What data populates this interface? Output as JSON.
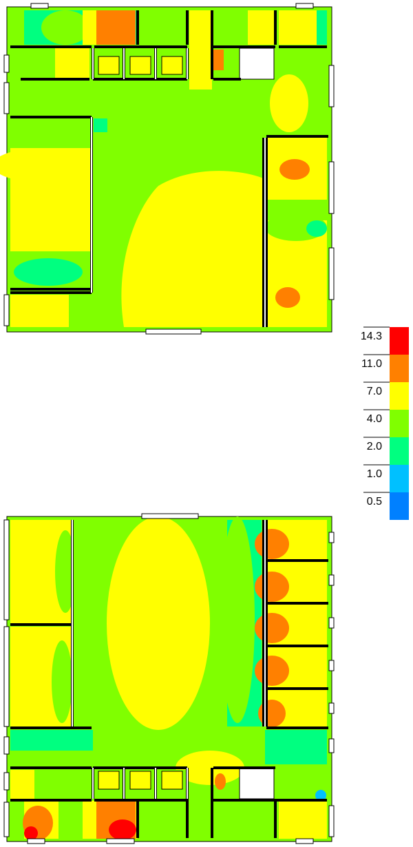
{
  "legend": {
    "levels": [
      {
        "label": "14.3",
        "color": "#ff0000"
      },
      {
        "label": "11.0",
        "color": "#ff8000"
      },
      {
        "label": "7.0",
        "color": "#ffff00"
      },
      {
        "label": "4.0",
        "color": "#80ff00"
      },
      {
        "label": "2.0",
        "color": "#00ff80"
      },
      {
        "label": "1.0",
        "color": "#00c0ff"
      },
      {
        "label": "0.5",
        "color": "#0080ff"
      }
    ]
  }
}
